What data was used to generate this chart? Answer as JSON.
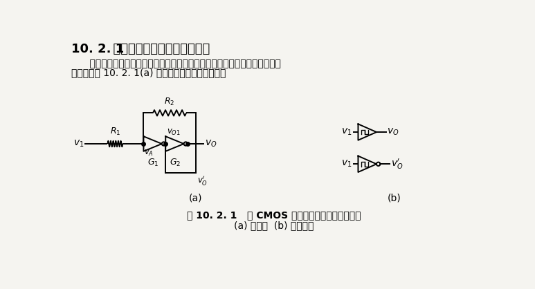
{
  "title_num": "10. 2. 1",
  "title_text": "  用门电路组成的施密特触发器",
  "para1": "    将两级反相器串接起来，同时通过分压电阻将输出端的电压反馈到输入端，",
  "para2": "就构成了图 10. 2. 1(a) 所示的施密特触发器电路。",
  "fig_caption1": "图 10. 2. 1   用 CMOS 反相器构成的施密特触发器",
  "fig_caption2": "(a) 电路图  (b) 图形符号",
  "sub_a": "(a)",
  "sub_b": "(b)",
  "bg_color": "#f5f4f0",
  "text_color": "#000000"
}
